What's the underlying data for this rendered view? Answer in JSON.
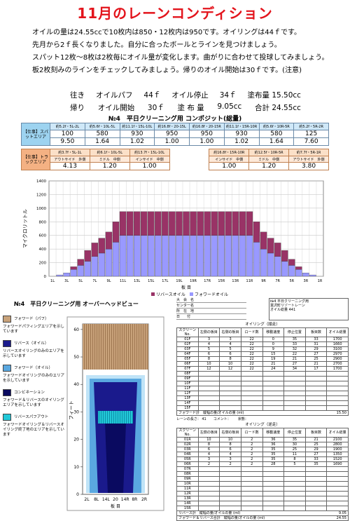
{
  "title": "11月のレーンコンディション",
  "paragraphs": [
    "オイルの量は24.55ccで10枚内は850・12枚内は950です。オイリングは44ｆです。",
    "先月から2ｆ長くなりました。自分に合ったボールとラインを見つけましょう。",
    "スパット12枚～8枚は2枚毎にオイル量が変化します。曲がりに合わせて投球してみましょう。",
    "板2枚刻みのラインをチェックしてみましょう。帰りのオイル開始は30ｆです。(注意)"
  ],
  "settings": [
    [
      "往き",
      "オイルパフ",
      "44ｆ",
      "オイル停止",
      "34ｆ",
      "塗布量 15.50cc"
    ],
    [
      "帰り",
      "オイル開始",
      "30ｆ",
      "塗 布 量",
      "9.05cc",
      "合計 24.55cc"
    ]
  ],
  "composite": {
    "title": "№4　平日クリーニング用 コンポジット(総量)",
    "spot_label": "【仕事】スパットエリア",
    "spot_headers": [
      "約5.2f・5L-2L",
      "約5.6f・10L-5L",
      "約11.1f・15L-10L",
      "約16.8f・20-15L",
      "約16.8f・20-15R",
      "約11.1f・15R-10R",
      "約5.6f・10R-5R",
      "約5.2f・5R-2R"
    ],
    "spot_values": [
      "100",
      "580",
      "930",
      "950",
      "950",
      "930",
      "580",
      "125"
    ],
    "spot_ratios": [
      "9.50",
      "1.64",
      "1.02",
      "1.00",
      "1.00",
      "1.02",
      "1.64",
      "7.60"
    ],
    "track_label": "【仕事】トラックエリア",
    "track_headers": [
      "約3.7f・5L-1L",
      "約6.1f・10L-5L",
      "約13.7f・15L-10L",
      "約16.8f・15R-10R",
      "約12.5f・10R-5R",
      "約7.7f・5R-1R"
    ],
    "track_zones": [
      "アウトサイド　外側",
      "ミドル　中側",
      "インサイド　中側",
      "インサイド　中側",
      "ミドル　中側",
      "アウトサイド　外側"
    ],
    "track_values": [
      "4.13",
      "1.20",
      "1.00",
      "1.00",
      "1.20",
      "3.80"
    ]
  },
  "chart_data": {
    "type": "bar",
    "stacked": true,
    "y_label": "マイクロリットル",
    "x_label": "板 目",
    "categories": [
      "1L",
      null,
      "3L",
      null,
      "5L",
      null,
      "7L",
      null,
      "9L",
      null,
      "11L",
      null,
      "13L",
      null,
      "15L",
      null,
      "17L",
      null,
      "19L",
      null,
      "19R",
      null,
      "17R",
      null,
      "15R",
      null,
      "13R",
      null,
      "11R",
      null,
      "9R",
      null,
      "7R",
      null,
      "5R",
      null,
      "3R",
      null,
      "1R"
    ],
    "series": [
      {
        "name": "フォワードオイル",
        "color": "#9999ff",
        "values": [
          0,
          20,
          50,
          100,
          160,
          220,
          290,
          340,
          400,
          500,
          600,
          600,
          600,
          600,
          600,
          600,
          600,
          600,
          600,
          600,
          600,
          600,
          600,
          600,
          600,
          600,
          600,
          600,
          600,
          500,
          400,
          340,
          290,
          220,
          160,
          100,
          50,
          20,
          0
        ]
      },
      {
        "name": "リバースオイル",
        "color": "#993366",
        "values": [
          0,
          0,
          0,
          40,
          90,
          160,
          200,
          220,
          250,
          300,
          350,
          350,
          350,
          350,
          350,
          350,
          350,
          350,
          350,
          350,
          350,
          350,
          350,
          350,
          350,
          350,
          350,
          350,
          350,
          300,
          250,
          220,
          200,
          160,
          90,
          40,
          0,
          0,
          0
        ]
      }
    ],
    "ylim": [
      0,
      1400
    ],
    "yticks": [
      0,
      200,
      400,
      600,
      800,
      1000,
      1200,
      1400
    ],
    "grid": true,
    "legend": "bottom"
  },
  "overhead": {
    "title": "№4　平日クリーニング用 オーバーヘッドビュー",
    "y_label": "フィート",
    "ylim": [
      0,
      62
    ],
    "yticks": [
      0,
      10,
      20,
      30,
      40,
      50,
      60
    ],
    "x_labels": [
      "2L",
      "8L",
      "14L",
      "20",
      "14R",
      "8R",
      "2R"
    ],
    "x_label": "板 目",
    "legend": [
      {
        "name": "フォワード（パフ）",
        "desc": "フォワードパフィングエリアを示しています",
        "color": "#c8a27a"
      },
      {
        "name": "リバース（オイル）",
        "desc": "リバースオイリングのみのエリアを示しています",
        "color": "#1a1a8c"
      },
      {
        "name": "フォワード（オイル）",
        "desc": "フォワードオイリングのみのエリアを示しています",
        "color": "#5aa8e0"
      },
      {
        "name": "コンビネーション",
        "desc": "フォワード＆リバースのオイリングエリアを示しています",
        "color": "#0a0a60"
      },
      {
        "name": "リバースパフアウト",
        "desc": "フォワードオイリング＆リバースオイリング終了地のエリアを示しています",
        "color": "#22c8d8"
      }
    ]
  },
  "record": {
    "fields": [
      "大　会　名",
      "センター名",
      "所　在　地",
      "日　　付"
    ],
    "info": [
      "№4 平日クリーニング用",
      "富沢町リゾートレーン",
      "オイル総量 441"
    ],
    "forward_heading": "オイリング（順走）",
    "reverse_heading": "オイリング（逆走）",
    "columns": [
      "スクリーン No.",
      "左側の板目",
      "右側の板目",
      "ロード数",
      "移動速度",
      "停止位置",
      "板目数",
      "オイル総量"
    ],
    "forward_rows": [
      [
        "01F",
        "3",
        "3",
        "22",
        "0",
        "35",
        "33",
        "1700"
      ],
      [
        "02F",
        "4",
        "4",
        "22",
        "0",
        "33",
        "31",
        "1660"
      ],
      [
        "03F",
        "5",
        "5",
        "22",
        "9",
        "32",
        "29",
        "3100"
      ],
      [
        "04F",
        "6",
        "6",
        "22",
        "15",
        "22",
        "27",
        "2970"
      ],
      [
        "05F",
        "8",
        "8",
        "22",
        "19",
        "21",
        "25",
        "2900"
      ],
      [
        "06F",
        "10",
        "10",
        "22",
        "21",
        "27",
        "21",
        "2700"
      ],
      [
        "07F",
        "12",
        "12",
        "22",
        "24",
        "34",
        "17",
        "1700"
      ],
      [
        "08F"
      ],
      [
        "09F"
      ],
      [
        "10F"
      ],
      [
        "11F"
      ],
      [
        "12F"
      ],
      [
        "13F"
      ],
      [
        "14F"
      ],
      [
        "15F"
      ]
    ],
    "forward_total": [
      "フォワード計　縦幅の量/オイルの量 (ml)",
      "15.50"
    ],
    "reverse_info": [
      "レーンの長さ： 41",
      "コメント：",
      "状態："
    ],
    "reverse_rows": [
      [
        "01R",
        "10",
        "10",
        "2",
        "36",
        "35",
        "21",
        "2100"
      ],
      [
        "02R",
        "8",
        "8",
        "2",
        "36",
        "30",
        "25",
        "2800"
      ],
      [
        "03R",
        "6",
        "6",
        "2",
        "35",
        "25",
        "29",
        "1900"
      ],
      [
        "04R",
        "4",
        "4",
        "2",
        "35",
        "11",
        "27",
        "1350"
      ],
      [
        "05R",
        "3",
        "3",
        "2",
        "35",
        "8",
        "33",
        "1520"
      ],
      [
        "06R",
        "2",
        "2",
        "2",
        "28",
        "5",
        "35",
        "1690"
      ],
      [
        "07R"
      ],
      [
        "08R"
      ],
      [
        "09R"
      ],
      [
        "10R"
      ],
      [
        "11R"
      ],
      [
        "12R"
      ],
      [
        "13R"
      ],
      [
        "14R"
      ],
      [
        "15R"
      ]
    ],
    "reverse_total": [
      "リバース計　縦幅の量/オイルの量 (ml)",
      "9.05"
    ],
    "grand_total": [
      "フォワード＆リバース合計　縦幅の量/オイルの量 (ml)",
      "24.55"
    ]
  }
}
